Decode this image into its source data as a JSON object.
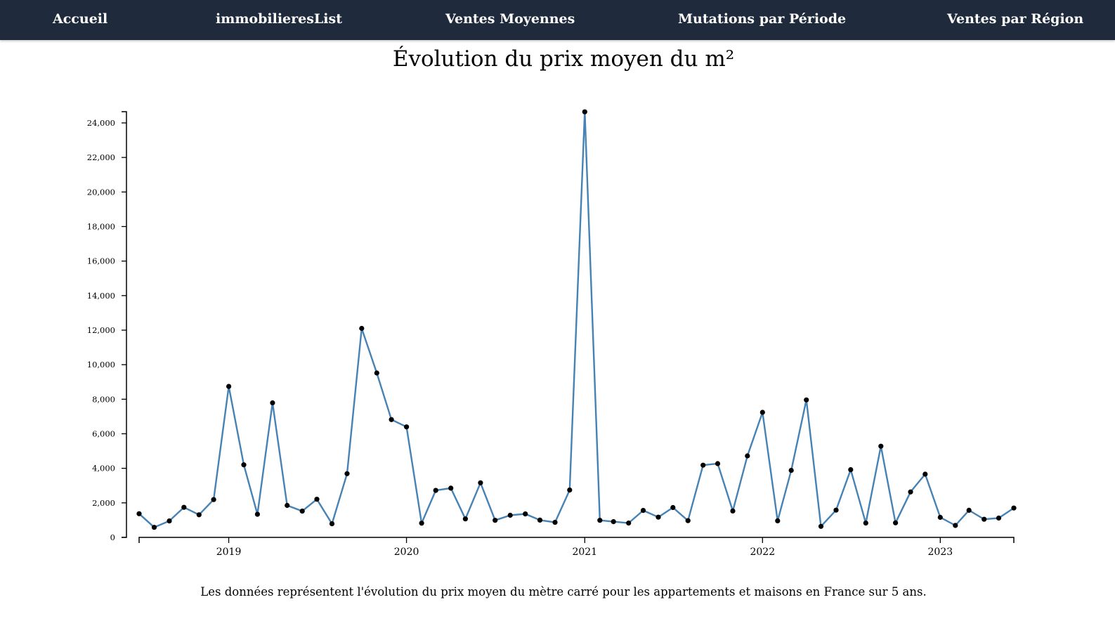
{
  "nav": {
    "items": [
      {
        "label": "Accueil"
      },
      {
        "label": "immobilieresList"
      },
      {
        "label": "Ventes Moyennes"
      },
      {
        "label": "Mutations par Période"
      },
      {
        "label": "Ventes par Région"
      }
    ],
    "background": "#1f2a3c",
    "text_color": "#ffffff"
  },
  "page": {
    "title": "Évolution du prix moyen du m²",
    "footnote": "Les données représentent l'évolution du prix moyen du mètre carré pour les appartements et maisons en France sur 5 ans."
  },
  "chart_data": {
    "type": "line",
    "line_color": "#4682b4",
    "point_color": "#000000",
    "grid": false,
    "x_tick_labels": [
      "2019",
      "2020",
      "2021",
      "2022",
      "2023"
    ],
    "y_tick_labels": [
      "0",
      "2,000",
      "4,000",
      "6,000",
      "8,000",
      "10,000",
      "12,000",
      "14,000",
      "16,000",
      "18,000",
      "20,000",
      "22,000",
      "24,000"
    ],
    "ylim": [
      0,
      24650
    ],
    "xlim": [
      "2018-07-01",
      "2023-06-01"
    ],
    "x": [
      "2018-07-01",
      "2018-08-01",
      "2018-09-01",
      "2018-10-01",
      "2018-11-01",
      "2018-12-01",
      "2019-01-01",
      "2019-02-01",
      "2019-03-01",
      "2019-04-01",
      "2019-05-01",
      "2019-06-01",
      "2019-07-01",
      "2019-08-01",
      "2019-09-01",
      "2019-10-01",
      "2019-11-01",
      "2019-12-01",
      "2020-01-01",
      "2020-02-01",
      "2020-03-01",
      "2020-04-01",
      "2020-05-01",
      "2020-06-01",
      "2020-07-01",
      "2020-08-01",
      "2020-09-01",
      "2020-10-01",
      "2020-11-01",
      "2020-12-01",
      "2021-01-01",
      "2021-02-01",
      "2021-03-01",
      "2021-04-01",
      "2021-05-01",
      "2021-06-01",
      "2021-07-01",
      "2021-08-01",
      "2021-09-01",
      "2021-10-01",
      "2021-11-01",
      "2021-12-01",
      "2022-01-01",
      "2022-02-01",
      "2022-03-01",
      "2022-04-01",
      "2022-05-01",
      "2022-06-01",
      "2022-07-01",
      "2022-08-01",
      "2022-09-01",
      "2022-10-01",
      "2022-11-01",
      "2022-12-01",
      "2023-01-01",
      "2023-02-01",
      "2023-03-01",
      "2023-04-01",
      "2023-05-01",
      "2023-06-01"
    ],
    "values": [
      1370,
      580,
      950,
      1740,
      1310,
      2190,
      8740,
      4200,
      1340,
      7790,
      1850,
      1520,
      2210,
      790,
      3690,
      12100,
      9520,
      6820,
      6400,
      820,
      2720,
      2850,
      1070,
      3160,
      990,
      1280,
      1360,
      1000,
      870,
      2740,
      24640,
      990,
      910,
      830,
      1560,
      1170,
      1730,
      970,
      4180,
      4270,
      1530,
      4720,
      7240,
      960,
      3880,
      7960,
      640,
      1580,
      3920,
      830,
      5280,
      840,
      2630,
      3660,
      1160,
      690,
      1570,
      1050,
      1120,
      1700
    ]
  }
}
